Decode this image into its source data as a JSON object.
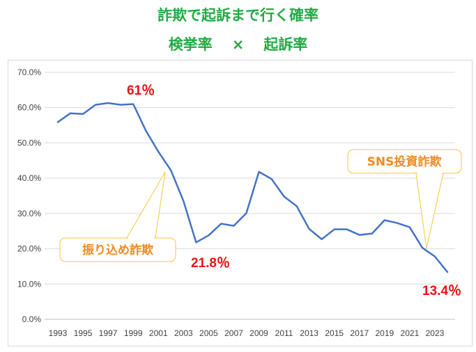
{
  "chart_data": {
    "type": "line",
    "title_line1": "詐欺で起訴まで行く確率",
    "title_line2_left": "検挙率",
    "title_line2_sep": "×",
    "title_line2_right": "起訴率",
    "xlabel": "",
    "ylabel": "",
    "ylim": [
      0,
      70
    ],
    "yticks": [
      "0.0%",
      "10.0%",
      "20.0%",
      "30.0%",
      "40.0%",
      "50.0%",
      "60.0%",
      "70.0%"
    ],
    "xticks": [
      "1993",
      "1995",
      "1997",
      "1999",
      "2001",
      "2003",
      "2005",
      "2007",
      "2009",
      "2011",
      "2013",
      "2015",
      "2017",
      "2019",
      "2021",
      "2023"
    ],
    "grid": true,
    "line_color": "#4472c4",
    "series": [
      {
        "x": [
          1993,
          1994,
          1995,
          1996,
          1997,
          1998,
          1999,
          2000,
          2001,
          2002,
          2003,
          2004,
          2005,
          2006,
          2007,
          2008,
          2009,
          2010,
          2011,
          2012,
          2013,
          2014,
          2015,
          2016,
          2017,
          2018,
          2019,
          2020,
          2021,
          2022,
          2023,
          2024
        ],
        "values": [
          55.9,
          58.4,
          58.2,
          60.8,
          61.3,
          60.8,
          61.0,
          53.5,
          47.5,
          42.2,
          33.5,
          21.8,
          23.8,
          27.1,
          26.5,
          30.1,
          41.8,
          39.8,
          34.8,
          32.1,
          25.6,
          22.7,
          25.5,
          25.5,
          23.9,
          24.3,
          28.1,
          27.3,
          26.1,
          20.3,
          17.8,
          13.4
        ]
      }
    ],
    "annotations": [
      {
        "text": "61％",
        "color": "#ee1111"
      },
      {
        "text": "21.8％",
        "color": "#ee1111"
      },
      {
        "text": "13.4％",
        "color": "#ee1111"
      }
    ],
    "callouts": [
      {
        "text": "振り込め詐欺",
        "color": "#ee8a22"
      },
      {
        "text": "SNS投資詐欺",
        "color": "#ee8a22"
      }
    ]
  }
}
